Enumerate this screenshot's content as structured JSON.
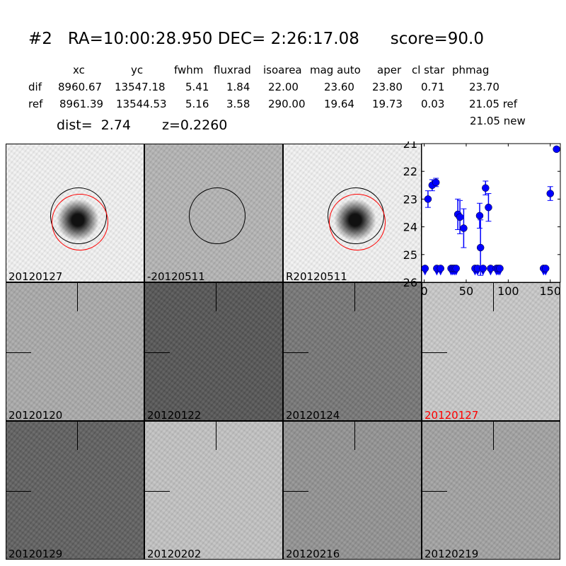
{
  "title": "#2   RA=10:00:28.950 DEC= 2:26:17.08      score=90.0",
  "table": {
    "headers": [
      "xc",
      "yc",
      "fwhm",
      "fluxrad",
      "isoarea",
      "mag auto",
      "aper",
      "cl star",
      "phmag"
    ],
    "rows": [
      {
        "label": "dif",
        "values": [
          "8960.67",
          "13547.18",
          "5.41",
          "1.84",
          "22.00",
          "23.60",
          "23.80",
          "0.71",
          "23.70"
        ]
      },
      {
        "label": "ref",
        "values": [
          "8961.39",
          "13544.53",
          "5.16",
          "3.58",
          "290.00",
          "19.64",
          "19.73",
          "0.03",
          "21.05 ref"
        ]
      }
    ],
    "extra": "21.05 new"
  },
  "dist": "dist=  2.74",
  "z": "z=0.2260",
  "stamps": [
    {
      "label": "20120127",
      "bg": "#f2f2f2",
      "src": "#111",
      "circles": true
    },
    {
      "label": "-20120511",
      "bg": "#b4b4b4",
      "src": "#333",
      "circles": true,
      "black_only": true
    },
    {
      "label": "R20120511",
      "bg": "#f2f2f2",
      "src": "#111",
      "circles": true
    },
    {
      "label": "20120120",
      "bg": "#aaaaaa",
      "src": "#333"
    },
    {
      "label": "20120122",
      "bg": "#555555",
      "src": "#eee"
    },
    {
      "label": "20120124",
      "bg": "#767676",
      "src": "#ddd"
    },
    {
      "label": "20120127",
      "bg": "#c8c8c8",
      "src": "#222",
      "label_color": "#ff0000"
    },
    {
      "label": "20120129",
      "bg": "#606060",
      "src": "#eee"
    },
    {
      "label": "20120202",
      "bg": "#c2c2c2",
      "src": "#222"
    },
    {
      "label": "20120216",
      "bg": "#929292",
      "src": "#333"
    },
    {
      "label": "20120219",
      "bg": "#a2a2a2",
      "src": "#888"
    }
  ],
  "chart_data": {
    "type": "scatter",
    "xlim": [
      -3,
      162
    ],
    "ylim": [
      26,
      21
    ],
    "xticks": [
      "0",
      "50",
      "100",
      "150"
    ],
    "yticks": [
      "21",
      "22",
      "23",
      "24",
      "25",
      "26"
    ],
    "color": "#0000ff",
    "points": [
      {
        "x": 4.5,
        "y": 23.0,
        "err": 0.3
      },
      {
        "x": 9.5,
        "y": 22.5,
        "err": 0.2
      },
      {
        "x": 14,
        "y": 22.4,
        "err": 0.15
      },
      {
        "x": 40,
        "y": 23.55,
        "err": 0.55
      },
      {
        "x": 42.5,
        "y": 23.65,
        "err": 0.6
      },
      {
        "x": 47,
        "y": 24.05,
        "err": 0.7
      },
      {
        "x": 66,
        "y": 23.6,
        "err": 0.45
      },
      {
        "x": 67,
        "y": 24.75,
        "err": 1.0
      },
      {
        "x": 73,
        "y": 22.6,
        "err": 0.25
      },
      {
        "x": 76.5,
        "y": 23.3,
        "err": 0.5
      },
      {
        "x": 150,
        "y": 22.8,
        "err": 0.25
      },
      {
        "x": 157.5,
        "y": 21.2,
        "err": 0
      }
    ],
    "upper_limits": {
      "y": 25.5,
      "x": [
        1,
        15,
        19.5,
        32,
        34,
        36,
        38,
        60.5,
        63.5,
        70,
        79,
        86,
        88,
        90,
        142,
        144.5
      ]
    }
  }
}
